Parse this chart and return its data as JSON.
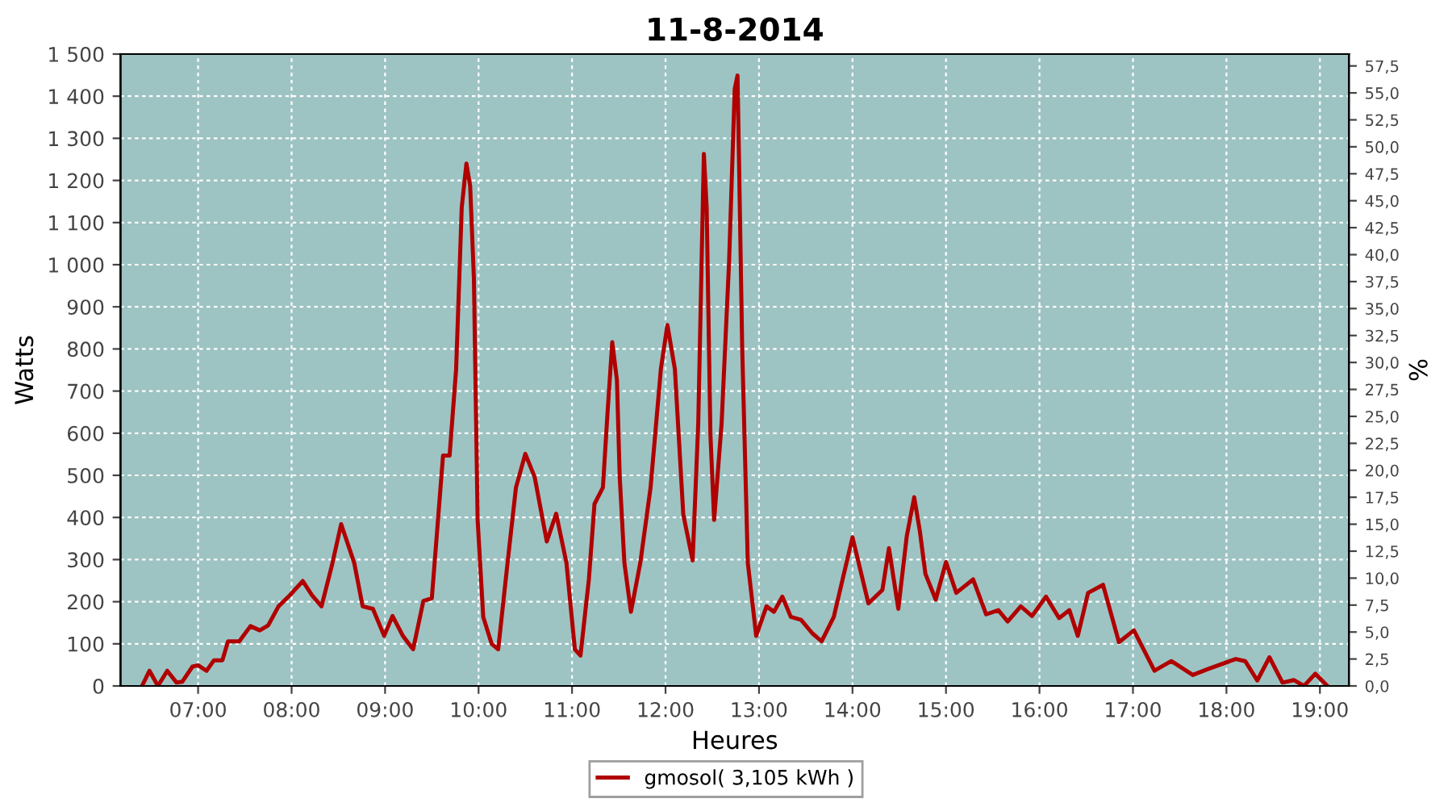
{
  "chart_data": {
    "type": "line",
    "title": "11-8-2014",
    "xlabel": "Heures",
    "ylabel": "Watts",
    "y2label": "%",
    "xlim": [
      6.17,
      19.31
    ],
    "xticks": [
      {
        "value": 7,
        "label": "07:00"
      },
      {
        "value": 8,
        "label": "08:00"
      },
      {
        "value": 9,
        "label": "09:00"
      },
      {
        "value": 10,
        "label": "10:00"
      },
      {
        "value": 11,
        "label": "11:00"
      },
      {
        "value": 12,
        "label": "12:00"
      },
      {
        "value": 13,
        "label": "13:00"
      },
      {
        "value": 14,
        "label": "14:00"
      },
      {
        "value": 15,
        "label": "15:00"
      },
      {
        "value": 16,
        "label": "16:00"
      },
      {
        "value": 17,
        "label": "17:00"
      },
      {
        "value": 18,
        "label": "18:00"
      },
      {
        "value": 19,
        "label": "19:00"
      }
    ],
    "ylim": [
      0,
      1500
    ],
    "yticks": [
      0,
      100,
      200,
      300,
      400,
      500,
      600,
      700,
      800,
      900,
      {
        "value": 1000,
        "label": "1 000"
      },
      {
        "value": 1100,
        "label": "1 100"
      },
      {
        "value": 1200,
        "label": "1 200"
      },
      {
        "value": 1300,
        "label": "1 300"
      },
      {
        "value": 1400,
        "label": "1 400"
      },
      {
        "value": 1500,
        "label": "1 500"
      }
    ],
    "y2lim": [
      0,
      58.6
    ],
    "y2ticks": [
      {
        "value": 0,
        "label": "0,0"
      },
      {
        "value": 2.5,
        "label": "2,5"
      },
      {
        "value": 5,
        "label": "5,0"
      },
      {
        "value": 7.5,
        "label": "7,5"
      },
      {
        "value": 10,
        "label": "10,0"
      },
      {
        "value": 12.5,
        "label": "12,5"
      },
      {
        "value": 15,
        "label": "15,0"
      },
      {
        "value": 17.5,
        "label": "17,5"
      },
      {
        "value": 20,
        "label": "20,0"
      },
      {
        "value": 22.5,
        "label": "22,5"
      },
      {
        "value": 25,
        "label": "25,0"
      },
      {
        "value": 27.5,
        "label": "27,5"
      },
      {
        "value": 30,
        "label": "30,0"
      },
      {
        "value": 32.5,
        "label": "32,5"
      },
      {
        "value": 35,
        "label": "35,0"
      },
      {
        "value": 37.5,
        "label": "37,5"
      },
      {
        "value": 40,
        "label": "40,0"
      },
      {
        "value": 42.5,
        "label": "42,5"
      },
      {
        "value": 45,
        "label": "45,0"
      },
      {
        "value": 47.5,
        "label": "47,5"
      },
      {
        "value": 50,
        "label": "50,0"
      },
      {
        "value": 52.5,
        "label": "52,5"
      },
      {
        "value": 55,
        "label": "55,0"
      },
      {
        "value": 57.5,
        "label": "57,5"
      }
    ],
    "grid": true,
    "legend": "bottom",
    "line_style": "solid",
    "series": [
      {
        "name": "gmosol( 3,105 kWh )",
        "color": "#b00000",
        "x": [
          6.4,
          6.48,
          6.57,
          6.67,
          6.77,
          6.83,
          6.94,
          7.0,
          7.09,
          7.17,
          7.26,
          7.32,
          7.44,
          7.56,
          7.66,
          7.75,
          7.86,
          7.98,
          8.12,
          8.22,
          8.32,
          8.43,
          8.53,
          8.67,
          8.76,
          8.87,
          8.99,
          9.08,
          9.19,
          9.3,
          9.41,
          9.5,
          9.62,
          9.69,
          9.76,
          9.82,
          9.87,
          9.91,
          9.95,
          9.99,
          10.05,
          10.14,
          10.21,
          10.31,
          10.4,
          10.5,
          10.6,
          10.73,
          10.83,
          10.94,
          11.03,
          11.09,
          11.18,
          11.24,
          11.33,
          11.38,
          11.43,
          11.48,
          11.51,
          11.56,
          11.63,
          11.73,
          11.84,
          11.95,
          12.02,
          12.1,
          12.19,
          12.29,
          12.35,
          12.41,
          12.44,
          12.48,
          12.52,
          12.6,
          12.68,
          12.74,
          12.77,
          12.78,
          12.82,
          12.88,
          12.97,
          13.08,
          13.16,
          13.25,
          13.34,
          13.45,
          13.57,
          13.67,
          13.8,
          14.0,
          14.17,
          14.32,
          14.39,
          14.49,
          14.58,
          14.66,
          14.72,
          14.78,
          14.89,
          15.0,
          15.11,
          15.29,
          15.43,
          15.56,
          15.66,
          15.8,
          15.92,
          16.07,
          16.21,
          16.32,
          16.41,
          16.52,
          16.68,
          16.85,
          17.01,
          17.23,
          17.41,
          17.64,
          17.8,
          18.1,
          18.2,
          18.33,
          18.46,
          18.6,
          18.72,
          18.83,
          18.95,
          19.08
        ],
        "values": [
          0,
          36,
          0,
          36,
          8,
          10,
          46,
          49,
          36,
          61,
          61,
          106,
          106,
          142,
          132,
          144,
          189,
          215,
          249,
          215,
          189,
          285,
          384,
          292,
          189,
          183,
          119,
          166,
          119,
          87,
          202,
          208,
          547,
          547,
          752,
          1136,
          1240,
          1187,
          969,
          394,
          164,
          100,
          87,
          292,
          471,
          551,
          496,
          343,
          409,
          292,
          87,
          72,
          253,
          432,
          471,
          650,
          816,
          726,
          496,
          292,
          176,
          292,
          471,
          752,
          857,
          752,
          407,
          298,
          624,
          1263,
          1136,
          598,
          394,
          624,
          1008,
          1417,
          1449,
          1327,
          803,
          292,
          119,
          189,
          176,
          212,
          164,
          157,
          125,
          106,
          164,
          353,
          196,
          228,
          327,
          183,
          355,
          448,
          368,
          266,
          205,
          294,
          221,
          253,
          170,
          180,
          153,
          189,
          166,
          212,
          161,
          180,
          119,
          221,
          240,
          104,
          132,
          36,
          59,
          26,
          40,
          64,
          59,
          13,
          68,
          8,
          14,
          0,
          29,
          0
        ]
      }
    ]
  }
}
